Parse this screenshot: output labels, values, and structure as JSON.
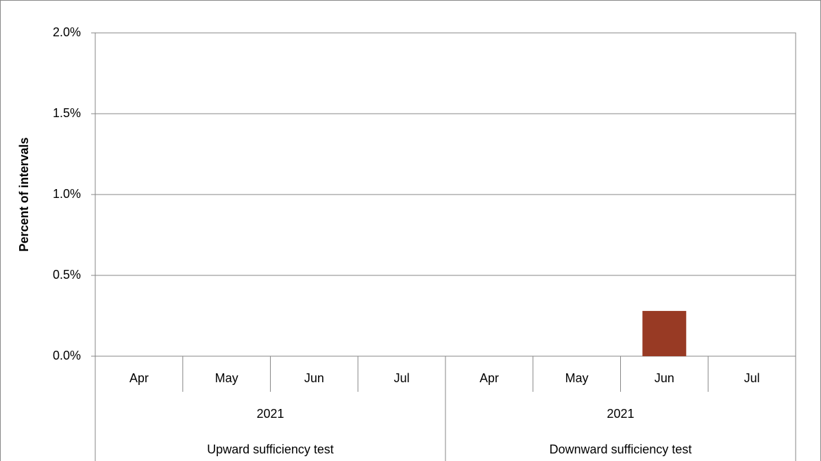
{
  "chart_data": {
    "type": "bar",
    "y_label": "Percent of intervals",
    "categories": [
      "Apr",
      "May",
      "Jun",
      "Jul",
      "Apr",
      "May",
      "Jun",
      "Jul"
    ],
    "values": [
      0,
      0,
      0,
      0,
      0,
      0,
      0.28,
      0
    ],
    "category_groups": [
      {
        "year": "2021",
        "label": "Upward sufficiency test"
      },
      {
        "year": "2021",
        "label": "Downward sufficiency test"
      }
    ],
    "color": "#983a24",
    "ylim": [
      0,
      2
    ],
    "yticks": [
      {
        "value": 0,
        "label": "0.0%"
      },
      {
        "value": 0.5,
        "label": "0.5%"
      },
      {
        "value": 1,
        "label": "1.0%"
      },
      {
        "value": 1.5,
        "label": "1.5%"
      },
      {
        "value": 2,
        "label": "2.0%"
      }
    ],
    "grid": true
  }
}
